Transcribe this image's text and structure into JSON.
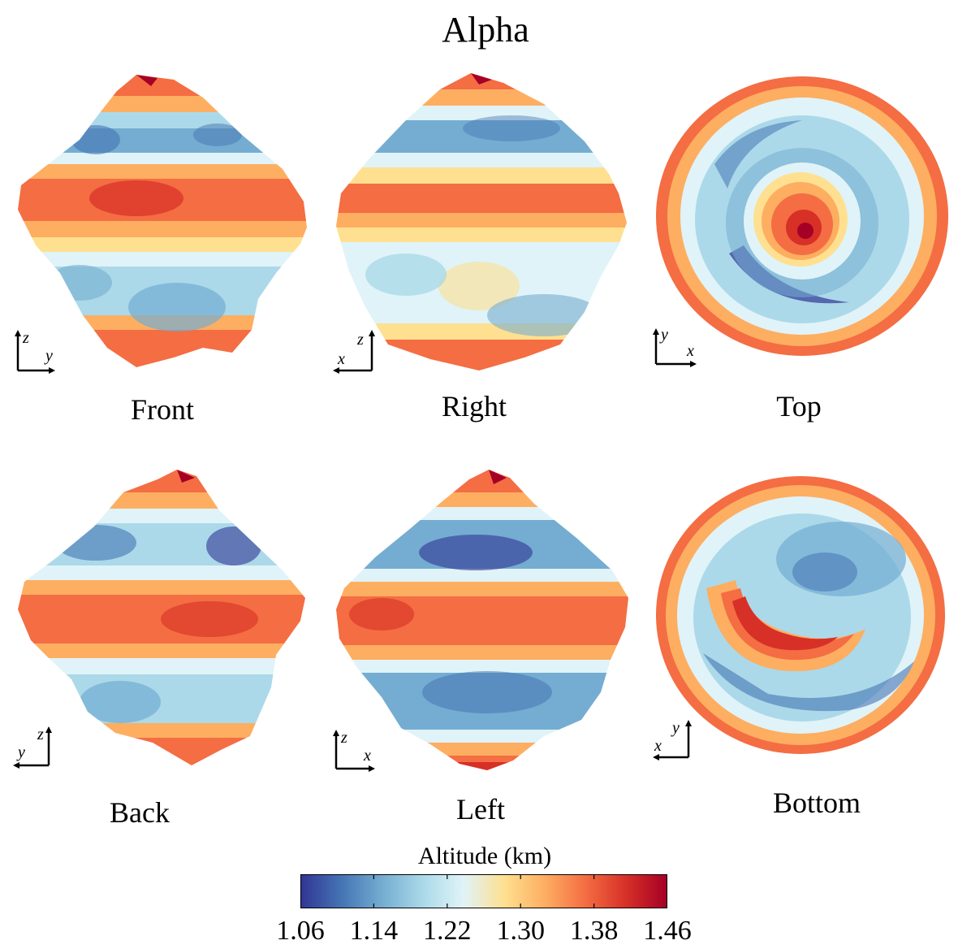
{
  "title": "Alpha",
  "views": [
    {
      "name": "Front",
      "ax_h": "y",
      "ax_v": "z",
      "h_dir": "right"
    },
    {
      "name": "Right",
      "ax_h": "x",
      "ax_v": "z",
      "h_dir": "left"
    },
    {
      "name": "Top",
      "ax_h": "x",
      "ax_v": "y",
      "h_dir": "right"
    },
    {
      "name": "Back",
      "ax_h": "y",
      "ax_v": "z",
      "h_dir": "left"
    },
    {
      "name": "Left",
      "ax_h": "x",
      "ax_v": "z",
      "h_dir": "right"
    },
    {
      "name": "Bottom",
      "ax_h": "x",
      "ax_v": "y",
      "h_dir": "left"
    }
  ],
  "colorbar": {
    "title": "Altitude (km)",
    "min": 1.06,
    "max": 1.46,
    "ticks": [
      "1.06",
      "1.14",
      "1.22",
      "1.30",
      "1.38",
      "1.46"
    ],
    "colors": [
      "#313695",
      "#4575b4",
      "#74add1",
      "#abd9e9",
      "#e0f3f8",
      "#fee090",
      "#fdae61",
      "#f46d43",
      "#d73027",
      "#a50026"
    ]
  }
}
